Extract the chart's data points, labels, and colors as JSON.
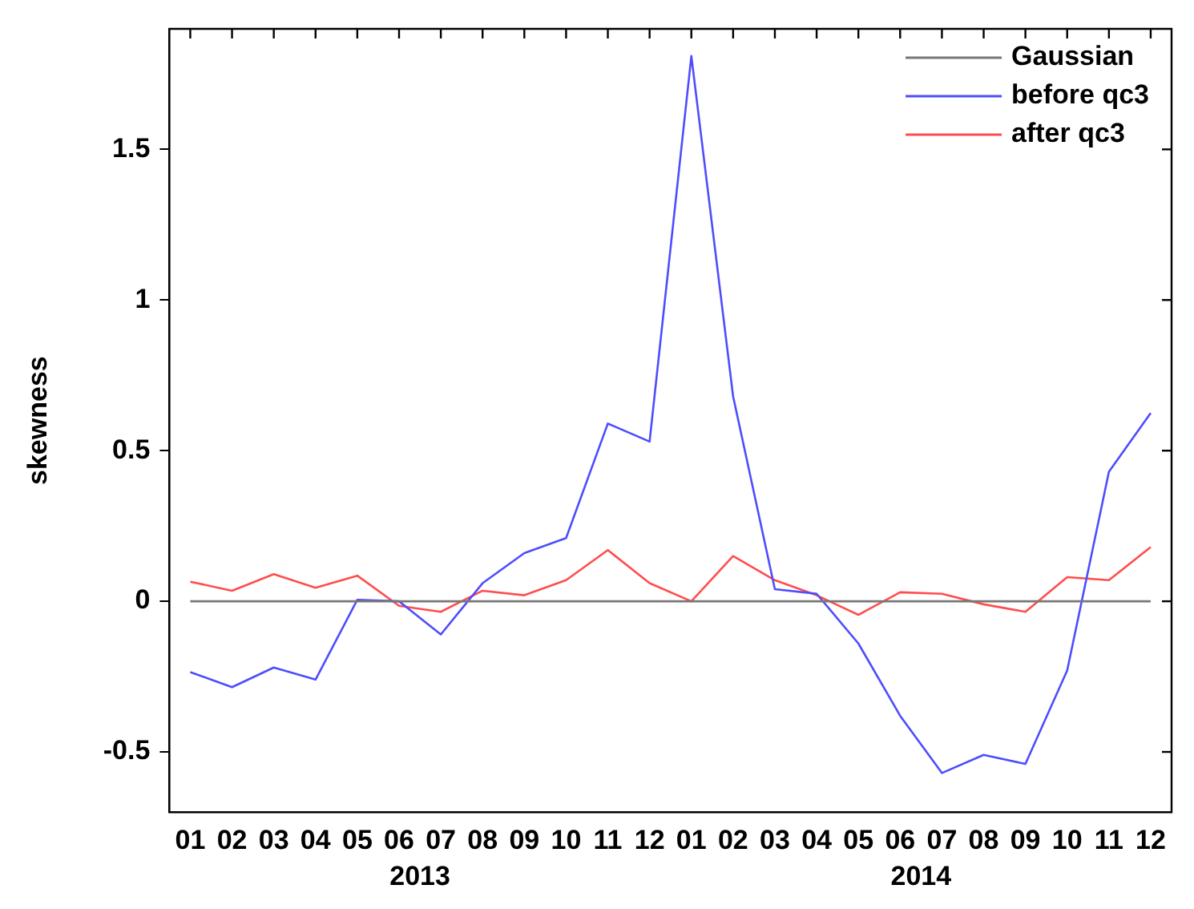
{
  "chart_data": {
    "type": "line",
    "ylabel": "skewness",
    "categories": [
      "01",
      "02",
      "03",
      "04",
      "05",
      "06",
      "07",
      "08",
      "09",
      "10",
      "11",
      "12",
      "01",
      "02",
      "03",
      "04",
      "05",
      "06",
      "07",
      "08",
      "09",
      "10",
      "11",
      "12"
    ],
    "series": [
      {
        "name": "Gaussian",
        "color": "#777777",
        "values": [
          0,
          0,
          0,
          0,
          0,
          0,
          0,
          0,
          0,
          0,
          0,
          0,
          0,
          0,
          0,
          0,
          0,
          0,
          0,
          0,
          0,
          0,
          0,
          0
        ]
      },
      {
        "name": "before qc3",
        "color": "#4d4dff",
        "values": [
          -0.235,
          -0.285,
          -0.22,
          -0.26,
          0.005,
          0.0,
          -0.11,
          0.06,
          0.16,
          0.21,
          0.59,
          0.53,
          1.81,
          0.68,
          0.04,
          0.025,
          -0.14,
          -0.38,
          -0.57,
          -0.51,
          -0.54,
          -0.23,
          0.43,
          0.625
        ]
      },
      {
        "name": "after qc3",
        "color": "#ff4d4d",
        "values": [
          0.065,
          0.035,
          0.09,
          0.045,
          0.085,
          -0.015,
          -0.035,
          0.035,
          0.02,
          0.07,
          0.17,
          0.06,
          0.0,
          0.15,
          0.07,
          0.02,
          -0.045,
          0.03,
          0.025,
          -0.01,
          -0.035,
          0.08,
          0.07,
          0.18
        ]
      }
    ],
    "annotations": [
      "2013",
      "2014"
    ],
    "ylim": [
      -0.7,
      1.9
    ],
    "yticks": [
      -0.5,
      0,
      0.5,
      1,
      1.5
    ],
    "grid": false,
    "legend": "top right",
    "line_style": "solid",
    "marker": "none"
  }
}
